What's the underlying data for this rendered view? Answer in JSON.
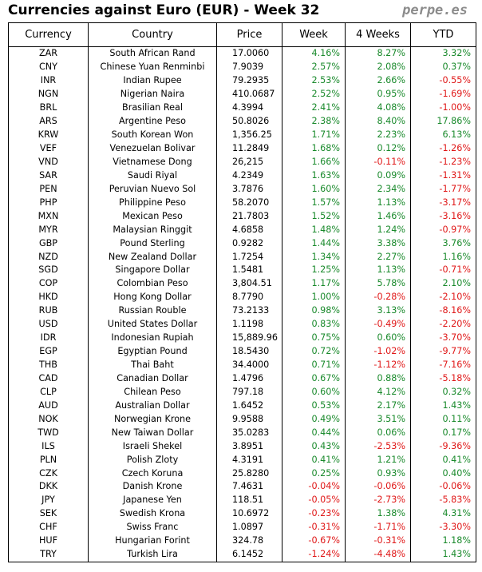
{
  "title": "Currencies against Euro (EUR) - Week 32",
  "brand": "perpe.es",
  "colors": {
    "positive": "#1a8a2c",
    "negative": "#e01818"
  },
  "headers": {
    "currency": "Currency",
    "country": "Country",
    "price": "Price",
    "week": "Week",
    "four_weeks": "4 Weeks",
    "ytd": "YTD"
  },
  "rows": [
    {
      "code": "ZAR",
      "name": "South African Rand",
      "price": "17.0060",
      "week": "4.16%",
      "four_weeks": "8.27%",
      "ytd": "3.32%"
    },
    {
      "code": "CNY",
      "name": "Chinese Yuan Renminbi",
      "price": "7.9039",
      "week": "2.57%",
      "four_weeks": "2.08%",
      "ytd": "0.37%"
    },
    {
      "code": "INR",
      "name": "Indian Rupee",
      "price": "79.2935",
      "week": "2.53%",
      "four_weeks": "2.66%",
      "ytd": "-0.55%"
    },
    {
      "code": "NGN",
      "name": "Nigerian Naira",
      "price": "410.0687",
      "week": "2.52%",
      "four_weeks": "0.95%",
      "ytd": "-1.69%"
    },
    {
      "code": "BRL",
      "name": "Brasilian Real",
      "price": "4.3994",
      "week": "2.41%",
      "four_weeks": "4.08%",
      "ytd": "-1.00%"
    },
    {
      "code": "ARS",
      "name": "Argentine Peso",
      "price": "50.8026",
      "week": "2.38%",
      "four_weeks": "8.40%",
      "ytd": "17.86%"
    },
    {
      "code": "KRW",
      "name": "South Korean Won",
      "price": "1,356.25",
      "week": "1.71%",
      "four_weeks": "2.23%",
      "ytd": "6.13%"
    },
    {
      "code": "VEF",
      "name": "Venezuelan Bolivar",
      "price": "11.2849",
      "week": "1.68%",
      "four_weeks": "0.12%",
      "ytd": "-1.26%"
    },
    {
      "code": "VND",
      "name": "Vietnamese Dong",
      "price": "26,215",
      "week": "1.66%",
      "four_weeks": "-0.11%",
      "ytd": "-1.23%"
    },
    {
      "code": "SAR",
      "name": "Saudi Riyal",
      "price": "4.2349",
      "week": "1.63%",
      "four_weeks": "0.09%",
      "ytd": "-1.31%"
    },
    {
      "code": "PEN",
      "name": "Peruvian Nuevo Sol",
      "price": "3.7876",
      "week": "1.60%",
      "four_weeks": "2.34%",
      "ytd": "-1.77%"
    },
    {
      "code": "PHP",
      "name": "Philippine Peso",
      "price": "58.2070",
      "week": "1.57%",
      "four_weeks": "1.13%",
      "ytd": "-3.17%"
    },
    {
      "code": "MXN",
      "name": "Mexican Peso",
      "price": "21.7803",
      "week": "1.52%",
      "four_weeks": "1.46%",
      "ytd": "-3.16%"
    },
    {
      "code": "MYR",
      "name": "Malaysian Ringgit",
      "price": "4.6858",
      "week": "1.48%",
      "four_weeks": "1.24%",
      "ytd": "-0.97%"
    },
    {
      "code": "GBP",
      "name": "Pound Sterling",
      "price": "0.9282",
      "week": "1.44%",
      "four_weeks": "3.38%",
      "ytd": "3.76%"
    },
    {
      "code": "NZD",
      "name": "New Zealand Dollar",
      "price": "1.7254",
      "week": "1.34%",
      "four_weeks": "2.27%",
      "ytd": "1.16%"
    },
    {
      "code": "SGD",
      "name": "Singapore Dollar",
      "price": "1.5481",
      "week": "1.25%",
      "four_weeks": "1.13%",
      "ytd": "-0.71%"
    },
    {
      "code": "COP",
      "name": "Colombian Peso",
      "price": "3,804.51",
      "week": "1.17%",
      "four_weeks": "5.78%",
      "ytd": "2.10%"
    },
    {
      "code": "HKD",
      "name": "Hong Kong Dollar",
      "price": "8.7790",
      "week": "1.00%",
      "four_weeks": "-0.28%",
      "ytd": "-2.10%"
    },
    {
      "code": "RUB",
      "name": "Russian Rouble",
      "price": "73.2133",
      "week": "0.98%",
      "four_weeks": "3.13%",
      "ytd": "-8.16%"
    },
    {
      "code": "USD",
      "name": "United States Dollar",
      "price": "1.1198",
      "week": "0.83%",
      "four_weeks": "-0.49%",
      "ytd": "-2.20%"
    },
    {
      "code": "IDR",
      "name": "Indonesian Rupiah",
      "price": "15,889.96",
      "week": "0.75%",
      "four_weeks": "0.60%",
      "ytd": "-3.70%"
    },
    {
      "code": "EGP",
      "name": "Egyptian Pound",
      "price": "18.5430",
      "week": "0.72%",
      "four_weeks": "-1.02%",
      "ytd": "-9.77%"
    },
    {
      "code": "THB",
      "name": "Thai Baht",
      "price": "34.4000",
      "week": "0.71%",
      "four_weeks": "-1.12%",
      "ytd": "-7.16%"
    },
    {
      "code": "CAD",
      "name": "Canadian Dollar",
      "price": "1.4796",
      "week": "0.67%",
      "four_weeks": "0.88%",
      "ytd": "-5.18%"
    },
    {
      "code": "CLP",
      "name": "Chilean Peso",
      "price": "797.18",
      "week": "0.60%",
      "four_weeks": "4.12%",
      "ytd": "0.32%"
    },
    {
      "code": "AUD",
      "name": "Australian Dollar",
      "price": "1.6452",
      "week": "0.53%",
      "four_weeks": "2.17%",
      "ytd": "1.43%"
    },
    {
      "code": "NOK",
      "name": "Norwegian Krone",
      "price": "9.9588",
      "week": "0.49%",
      "four_weeks": "3.51%",
      "ytd": "0.11%"
    },
    {
      "code": "TWD",
      "name": "New Taiwan Dollar",
      "price": "35.0283",
      "week": "0.44%",
      "four_weeks": "0.06%",
      "ytd": "0.17%"
    },
    {
      "code": "ILS",
      "name": "Israeli Shekel",
      "price": "3.8951",
      "week": "0.43%",
      "four_weeks": "-2.53%",
      "ytd": "-9.36%"
    },
    {
      "code": "PLN",
      "name": "Polish Zloty",
      "price": "4.3191",
      "week": "0.41%",
      "four_weeks": "1.21%",
      "ytd": "0.41%"
    },
    {
      "code": "CZK",
      "name": "Czech Koruna",
      "price": "25.8280",
      "week": "0.25%",
      "four_weeks": "0.93%",
      "ytd": "0.40%"
    },
    {
      "code": "DKK",
      "name": "Danish Krone",
      "price": "7.4631",
      "week": "-0.04%",
      "four_weeks": "-0.06%",
      "ytd": "-0.06%"
    },
    {
      "code": "JPY",
      "name": "Japanese Yen",
      "price": "118.51",
      "week": "-0.05%",
      "four_weeks": "-2.73%",
      "ytd": "-5.83%"
    },
    {
      "code": "SEK",
      "name": "Swedish Krona",
      "price": "10.6972",
      "week": "-0.23%",
      "four_weeks": "1.38%",
      "ytd": "4.31%"
    },
    {
      "code": "CHF",
      "name": "Swiss Franc",
      "price": "1.0897",
      "week": "-0.31%",
      "four_weeks": "-1.71%",
      "ytd": "-3.30%"
    },
    {
      "code": "HUF",
      "name": "Hungarian Forint",
      "price": "324.78",
      "week": "-0.67%",
      "four_weeks": "-0.31%",
      "ytd": "1.18%"
    },
    {
      "code": "TRY",
      "name": "Turkish Lira",
      "price": "6.1452",
      "week": "-1.24%",
      "four_weeks": "-4.48%",
      "ytd": "1.43%"
    }
  ]
}
